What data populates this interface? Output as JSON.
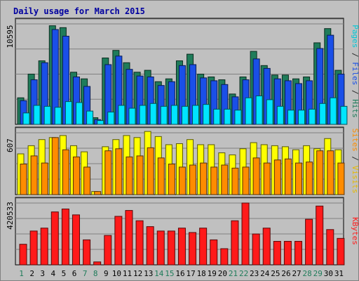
{
  "chart_data": {
    "type": "bar",
    "title": "Daily usage for March 2015",
    "categories": [
      "1",
      "2",
      "3",
      "4",
      "5",
      "6",
      "7",
      "8",
      "9",
      "10",
      "11",
      "12",
      "13",
      "14",
      "15",
      "16",
      "17",
      "18",
      "19",
      "20",
      "21",
      "22",
      "23",
      "24",
      "25",
      "26",
      "27",
      "28",
      "29",
      "30",
      "31"
    ],
    "weekend_days": [
      "1",
      "7",
      "8",
      "14",
      "15",
      "21",
      "22",
      "28",
      "29"
    ],
    "panels": [
      {
        "id": "top",
        "max_label": "10595",
        "ylim": [
          0,
          10595
        ],
        "series": [
          {
            "name": "Hits",
            "color": "#1f7c5a",
            "values": [
              2800,
              5300,
              6700,
              10400,
              10200,
              5500,
              4800,
              700,
              7000,
              7800,
              6500,
              5500,
              5700,
              4500,
              4800,
              6700,
              7400,
              5300,
              5000,
              4700,
              3200,
              5000,
              7700,
              6200,
              5200,
              5200,
              4800,
              5000,
              8600,
              10100,
              5700
            ]
          },
          {
            "name": "Files",
            "color": "#1a4fe8",
            "values": [
              2500,
              4700,
              6500,
              10000,
              9300,
              5000,
              4000,
              500,
              6300,
              7200,
              5800,
              5100,
              5000,
              4100,
              4500,
              6200,
              6300,
              4900,
              4600,
              4200,
              2900,
              4700,
              6900,
              5900,
              4800,
              4600,
              4300,
              4600,
              8000,
              9400,
              5300
            ]
          },
          {
            "name": "Pages",
            "color": "#00e5ff",
            "values": [
              1200,
              2000,
              1900,
              1800,
              2400,
              2300,
              1400,
              400,
              1300,
              2000,
              1700,
              2000,
              2200,
              1900,
              2000,
              1900,
              2000,
              2100,
              1600,
              1600,
              1500,
              2800,
              3000,
              2600,
              1900,
              1500,
              1500,
              1600,
              2200,
              2800,
              1900
            ]
          }
        ],
        "axis_labels": [
          {
            "text": "Pages",
            "color": "#00c8d8"
          },
          {
            "text": " / ",
            "color": "#2a2a2a"
          },
          {
            "text": "Files",
            "color": "#1a4fe8"
          },
          {
            "text": " / ",
            "color": "#2a2a2a"
          },
          {
            "text": "Hits",
            "color": "#1f7c5a"
          }
        ]
      },
      {
        "id": "middle",
        "max_label": "607",
        "ylim": [
          0,
          607
        ],
        "series": [
          {
            "name": "Visits",
            "color": "#ffff00",
            "values": [
              400,
              480,
              540,
              560,
              580,
              480,
              420,
              30,
              470,
              540,
              580,
              560,
              620,
              570,
              490,
              500,
              540,
              490,
              490,
              410,
              390,
              450,
              510,
              490,
              480,
              470,
              440,
              480,
              450,
              550,
              440
            ]
          },
          {
            "name": "Sites",
            "color": "#ff8c00",
            "values": [
              300,
              380,
              310,
              560,
              440,
              370,
              270,
              30,
              430,
              450,
              370,
              380,
              460,
              360,
              300,
              270,
              290,
              310,
              270,
              290,
              260,
              270,
              360,
              310,
              340,
              350,
              310,
              320,
              430,
              430,
              310
            ]
          }
        ],
        "axis_labels": [
          {
            "text": "Sites",
            "color": "#ff8c00"
          },
          {
            "text": " / ",
            "color": "#2a2a2a"
          },
          {
            "text": "Visits",
            "color": "#e6b800"
          }
        ]
      },
      {
        "id": "bottom",
        "max_label": "420533",
        "ylim": [
          0,
          420533
        ],
        "series": [
          {
            "name": "KBytes",
            "color": "#ff1a1a",
            "values": [
              140000,
              230000,
              250000,
              360000,
              380000,
              340000,
              170000,
              20000,
              200000,
              330000,
              370000,
              300000,
              260000,
              230000,
              230000,
              250000,
              220000,
              250000,
              170000,
              110000,
              300000,
              420533,
              210000,
              250000,
              160000,
              160000,
              160000,
              310000,
              400000,
              240000,
              180000
            ]
          }
        ],
        "axis_labels": [
          {
            "text": "KBytes",
            "color": "#ff1a1a"
          }
        ]
      }
    ]
  }
}
